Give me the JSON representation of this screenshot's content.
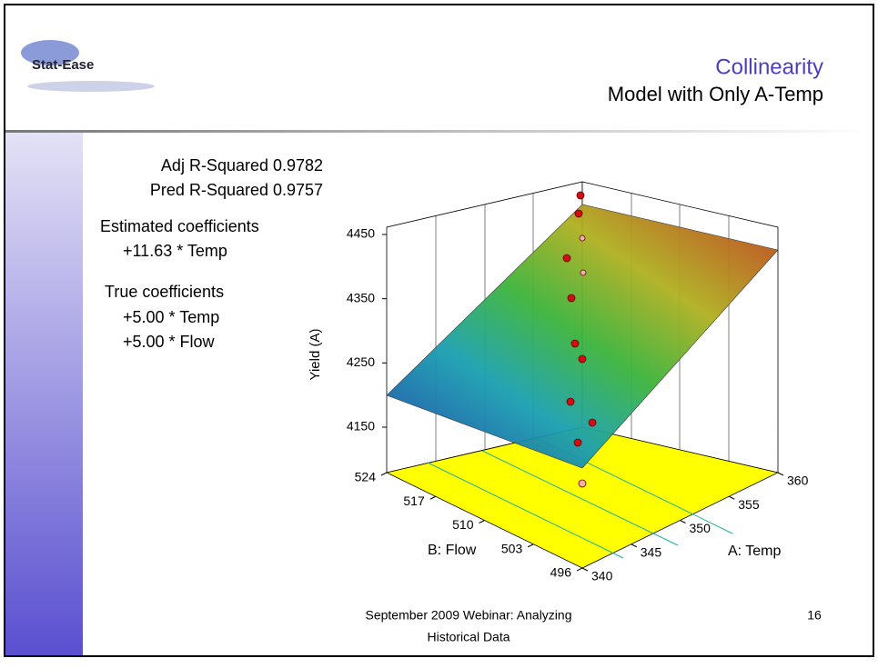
{
  "header": {
    "logo": "Stat-Ease",
    "title": "Collinearity",
    "subtitle": "Model with Only A-Temp"
  },
  "stats": [
    {
      "label": "Adj R-Squared",
      "value": "0.9782"
    },
    {
      "label": "Pred R-Squared",
      "value": "0.9757"
    }
  ],
  "estimated": {
    "heading": "Estimated coefficients",
    "terms": [
      "+11.63 * Temp"
    ]
  },
  "true_coef": {
    "heading": "True coefficients",
    "terms": [
      "+5.00 * Temp",
      "+5.00 * Flow"
    ]
  },
  "plot": {
    "z_label": "Yield (A)",
    "x_label": "A: Temp",
    "y_label": "B: Flow",
    "z_ticks": [
      4150,
      4250,
      4350,
      4450
    ],
    "temp_ticks": [
      340,
      345,
      350,
      355,
      360
    ],
    "flow_ticks": [
      496,
      503,
      510,
      517,
      524
    ]
  },
  "footer": {
    "lines": [
      "September 2009 Webinar: Analyzing",
      "Historical Data"
    ],
    "page": "16"
  }
}
